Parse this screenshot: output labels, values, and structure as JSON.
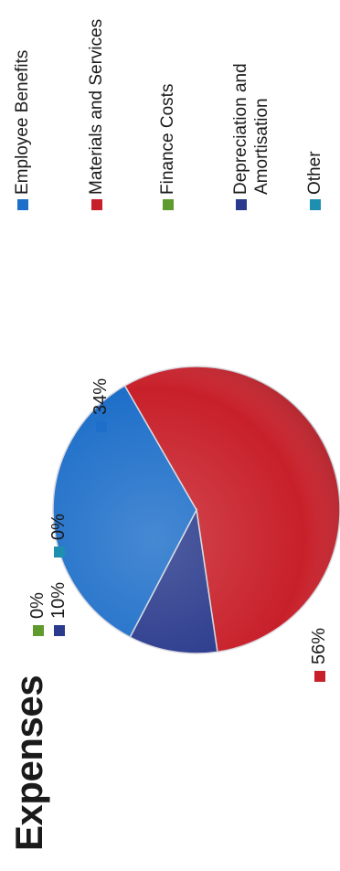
{
  "chart_data": {
    "type": "pie",
    "title": "Expenses",
    "categories": [
      "Employee Benefits",
      "Materials and Services",
      "Finance Costs",
      "Depreciation and Amortisation",
      "Other"
    ],
    "values": [
      34,
      56,
      0,
      10,
      0
    ],
    "data_labels": [
      "34%",
      "56%",
      "0%",
      "10%",
      "0%"
    ],
    "colors": [
      "#1e6fc9",
      "#c8202a",
      "#5f9a2e",
      "#2a3a8c",
      "#1f8fb0"
    ],
    "legend_position": "right",
    "legend": [
      {
        "line1": "Employee Benefits",
        "line2": ""
      },
      {
        "line1": "Materials and Services",
        "line2": ""
      },
      {
        "line1": "Finance Costs",
        "line2": ""
      },
      {
        "line1": "Depreciation and",
        "line2": "Amortisation"
      },
      {
        "line1": "Other",
        "line2": ""
      }
    ]
  }
}
